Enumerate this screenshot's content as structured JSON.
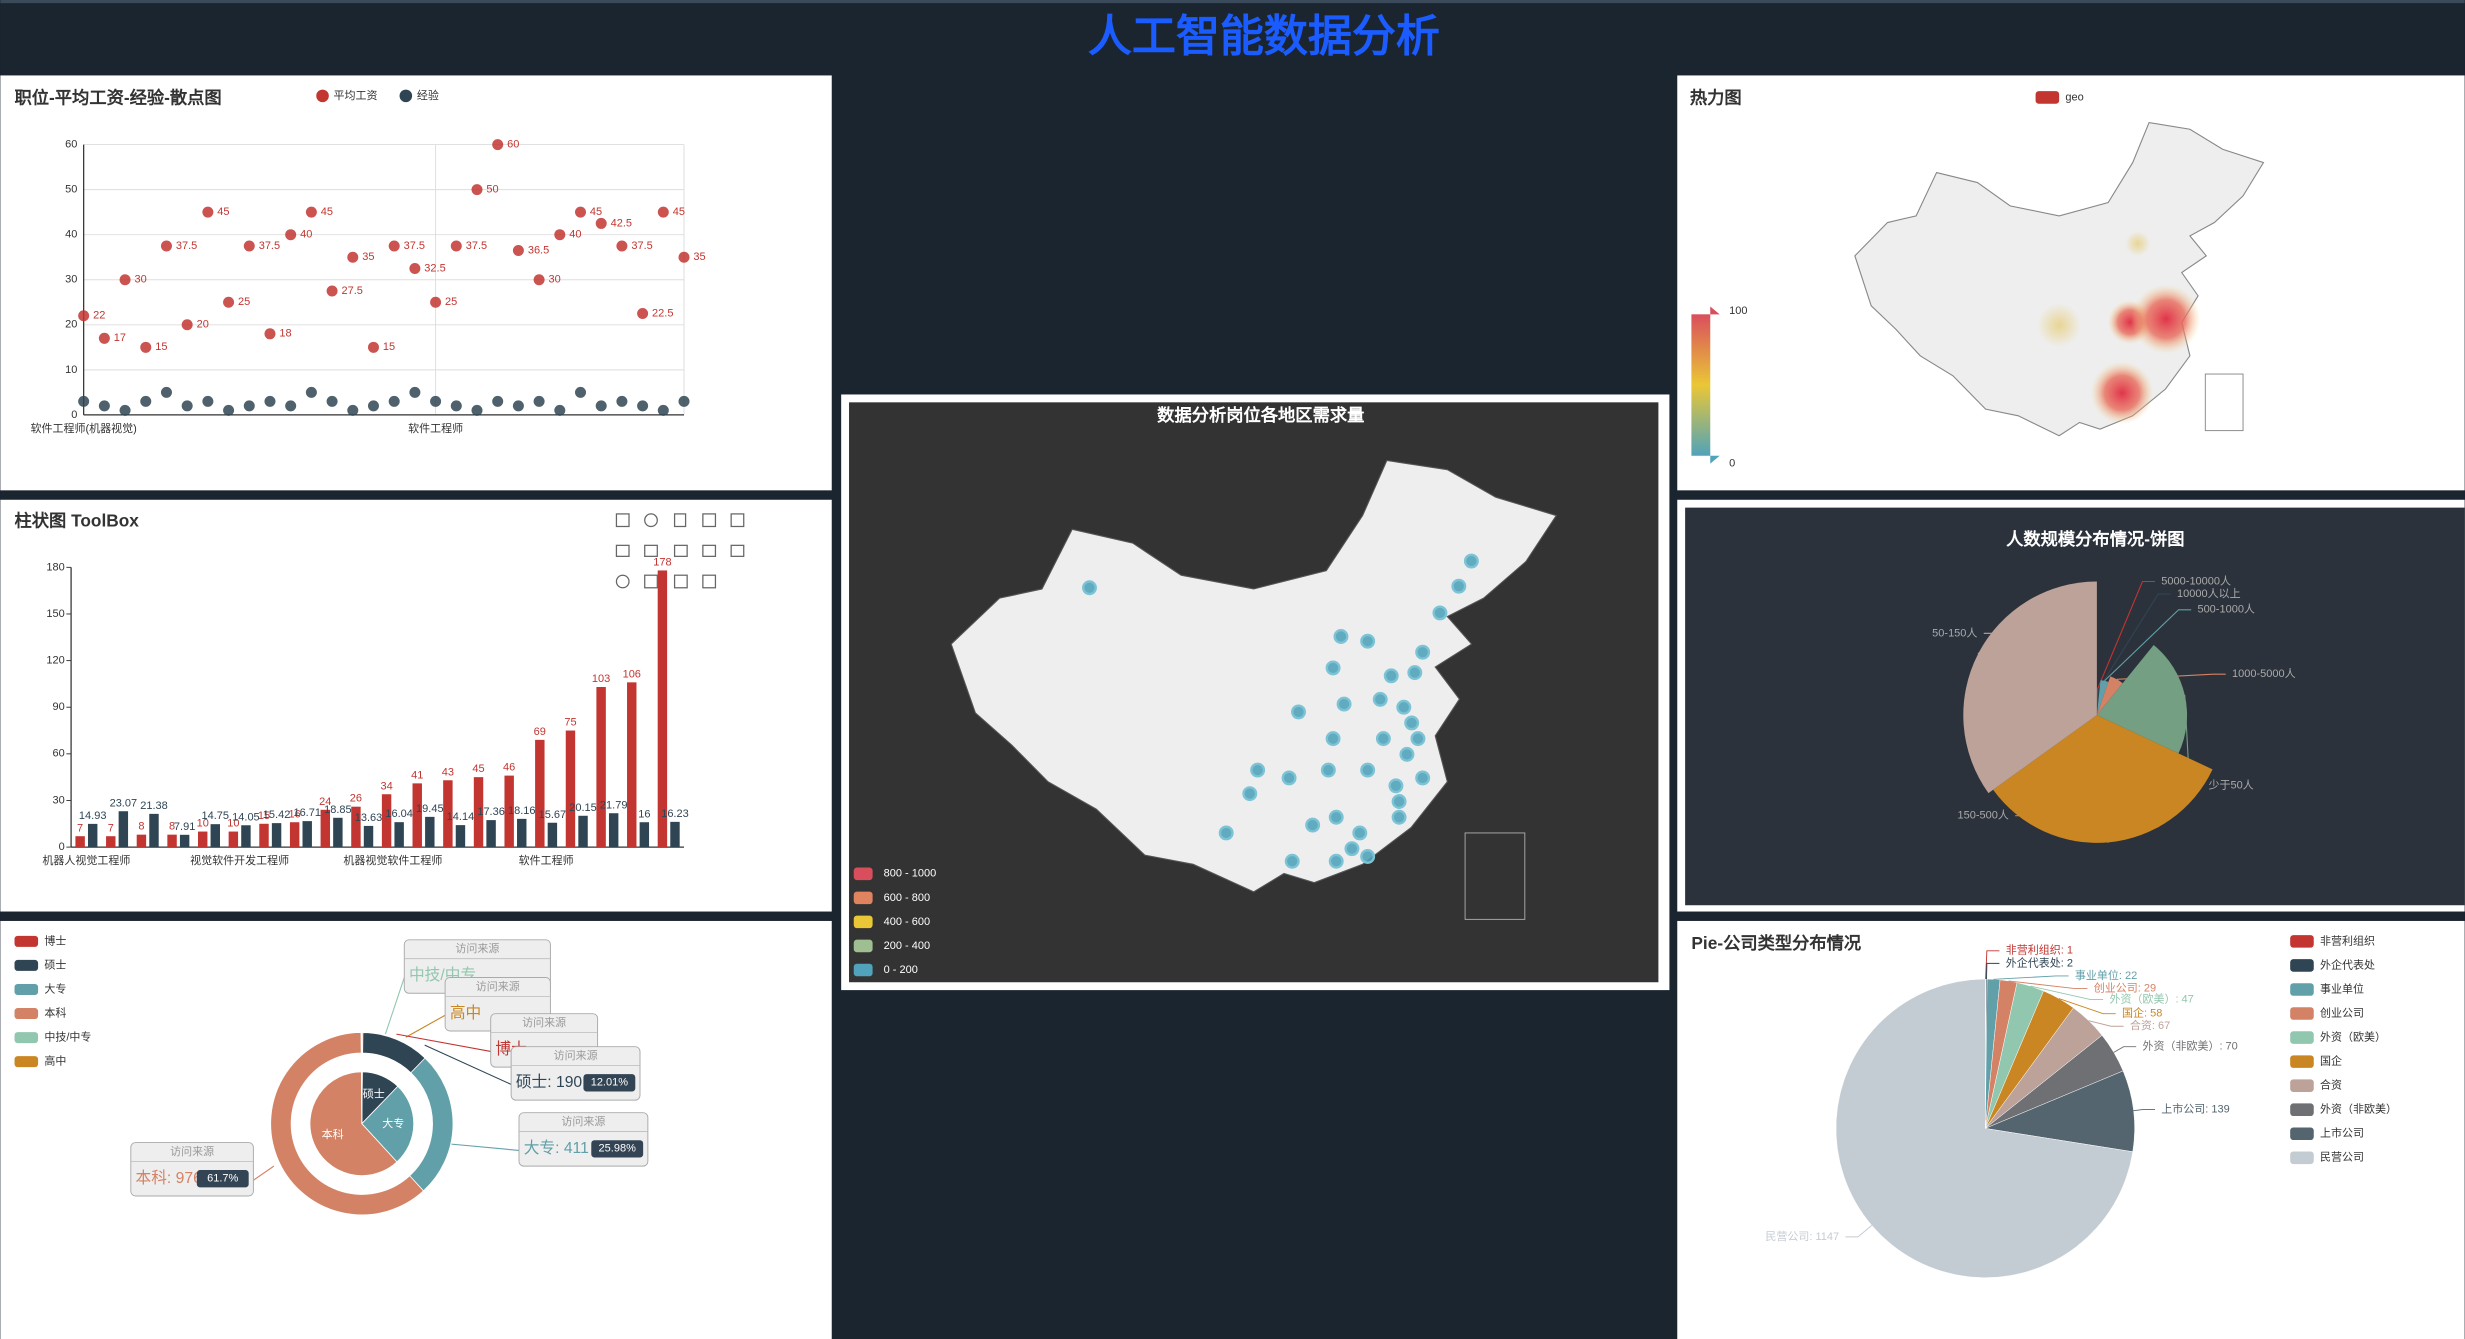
{
  "title": "人工智能数据分析",
  "chart_data": [
    {
      "type": "scatter",
      "title": "职位-平均工资-经验-散点图",
      "categories": [
        "软件工程师(机器视觉)",
        null,
        null,
        null,
        null,
        null,
        null,
        null,
        null,
        null,
        null,
        null,
        null,
        null,
        null,
        null,
        null,
        "软件工程师",
        null,
        null,
        null,
        null,
        null,
        null,
        null,
        null,
        null,
        null,
        null,
        null
      ],
      "series": [
        {
          "name": "平均工资",
          "color": "#c23531",
          "values": [
            22,
            17,
            30,
            15,
            37.5,
            20,
            45,
            25,
            37.5,
            18,
            40,
            45,
            27.5,
            35,
            15,
            37.5,
            32.5,
            25,
            37.5,
            50,
            60,
            36.5,
            30,
            40,
            45,
            42.5,
            37.5,
            22.5,
            45,
            35
          ]
        },
        {
          "name": "经验",
          "color": "#2f4554",
          "values": [
            3,
            2,
            1,
            3,
            5,
            2,
            3,
            1,
            2,
            3,
            2,
            5,
            3,
            1,
            2,
            3,
            5,
            3,
            2,
            1,
            3,
            2,
            3,
            1,
            5,
            2,
            3,
            2,
            1,
            3
          ]
        }
      ],
      "ylim": [
        0,
        60
      ],
      "yticks": [
        0,
        10,
        20,
        30,
        40,
        50,
        60
      ],
      "grid": true
    },
    {
      "type": "bar",
      "title": "柱状图 ToolBox",
      "categories": [
        "机器人视觉工程师",
        null,
        null,
        null,
        null,
        "视觉软件开发工程师",
        null,
        null,
        null,
        null,
        "机器视觉软件工程师",
        null,
        null,
        null,
        null,
        "软件工程师",
        null,
        null,
        null,
        null
      ],
      "series": [
        {
          "color": "#c23531",
          "values": [
            7,
            7,
            8,
            8,
            10,
            10,
            15,
            16,
            24,
            26,
            34,
            41,
            43,
            45,
            46,
            69,
            75,
            103,
            106,
            178
          ]
        },
        {
          "color": "#2f4554",
          "values": [
            14.93,
            23.07,
            21.38,
            7.91,
            14.75,
            14.05,
            15.42,
            16.71,
            18.85,
            13.63,
            16.04,
            19.45,
            14.14,
            17.36,
            18.16,
            15.67,
            20.15,
            21.79,
            16,
            16.23
          ]
        }
      ],
      "ylim": [
        0,
        180
      ],
      "yticks": [
        0,
        30,
        60,
        90,
        120,
        150,
        180
      ]
    },
    {
      "type": "nested_pie",
      "categories": [
        "博士",
        "硕士",
        "大专",
        "本科",
        "中技/中专",
        "高中"
      ],
      "values": [
        3,
        190,
        411,
        976,
        1,
        1
      ],
      "colors": [
        "#c23531",
        "#2f4554",
        "#61a0a8",
        "#d48265",
        "#91c7ae",
        "#ca8622"
      ],
      "callouts": [
        {
          "title": "访问来源",
          "label": "中技/中专"
        },
        {
          "title": "访问来源",
          "label": "高中"
        },
        {
          "title": "访问来源",
          "label": "博士"
        },
        {
          "title": "访问来源",
          "label": "硕士: 190",
          "percent": "12.01%"
        },
        {
          "title": "访问来源",
          "label": "大专: 411",
          "percent": "25.98%"
        },
        {
          "title": "访问来源",
          "label": "本科: 976",
          "percent": "61.7%"
        }
      ]
    },
    {
      "type": "map",
      "title": "数据分析岗位各地区需求量",
      "pieces": [
        {
          "label": "800 - 1000",
          "color": "#d94e5d"
        },
        {
          "label": "600 - 800",
          "color": "#e0835f"
        },
        {
          "label": "400 - 600",
          "color": "#eac736"
        },
        {
          "label": "200 - 400",
          "color": "#9fbe91"
        },
        {
          "label": "0 - 200",
          "color": "#50a3ba"
        }
      ]
    },
    {
      "type": "heatmap",
      "title": "热力图",
      "series": [
        {
          "name": "geo",
          "color": "#c23531"
        }
      ],
      "visual_range": [
        0,
        100
      ]
    },
    {
      "type": "rose",
      "title": "人数规模分布情况-饼图",
      "categories": [
        "5000-10000人",
        "10000人以上",
        "500-1000人",
        "1000-5000人",
        "少于50人",
        "150-500人",
        "50-150人"
      ],
      "values": [
        8,
        10,
        40,
        60,
        230,
        360,
        380
      ],
      "colors": [
        "#c23531",
        "#2f4554",
        "#61a0a8",
        "#d48265",
        "#749f83",
        "#ca8622",
        "#bda29a"
      ]
    },
    {
      "type": "pie",
      "title": "Pie-公司类型分布情况",
      "categories": [
        "非营利组织",
        "外企代表处",
        "事业单位",
        "创业公司",
        "外资（欧美）",
        "国企",
        "合资",
        "外资（非欧美）",
        "上市公司",
        "民营公司"
      ],
      "values": [
        1,
        2,
        22,
        29,
        47,
        58,
        67,
        70,
        139,
        1147
      ],
      "value_labels": [
        "非营利组织: 1",
        "外企代表处: 2",
        "事业单位: 22",
        "创业公司: 29",
        "外资（欧美）: 47",
        "国企: 58",
        "合资: 67",
        "外资（非欧美）: 70",
        "上市公司: 139",
        "民营公司: 1147"
      ],
      "colors": [
        "#c23531",
        "#2f4554",
        "#61a0a8",
        "#d48265",
        "#91c7ae",
        "#ca8622",
        "#bda29a",
        "#6e7074",
        "#546570",
        "#c4ccd3"
      ]
    }
  ]
}
